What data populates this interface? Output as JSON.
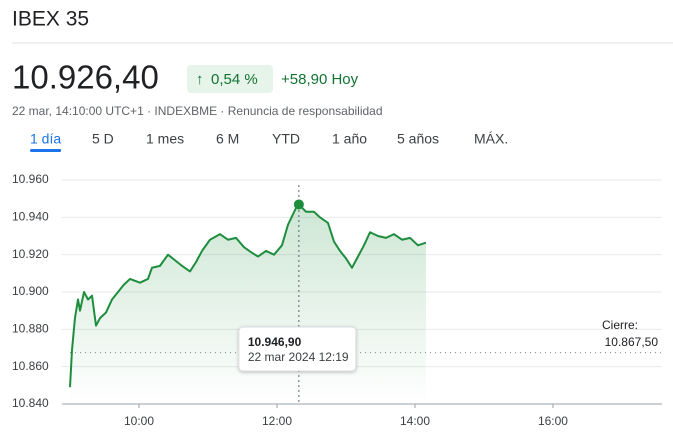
{
  "header": {
    "title": "IBEX 35",
    "price": "10.926,40",
    "change_arrow": "↑",
    "change_percent": "0,54 %",
    "change_abs": "+58,90 Hoy",
    "meta": "22 mar, 14:10:00 UTC+1 · INDEXBME · Renuncia de responsabilidad"
  },
  "tabs": [
    "1 día",
    "5 D",
    "1 mes",
    "6 M",
    "YTD",
    "1 año",
    "5 años",
    "MÁX."
  ],
  "chart_data": {
    "type": "line",
    "series": [
      {
        "name": "IBEX 35",
        "color": "#1e8e3e",
        "x": [
          9.0,
          9.029,
          9.072,
          9.116,
          9.145,
          9.203,
          9.261,
          9.319,
          9.377,
          9.435,
          9.522,
          9.609,
          9.696,
          9.783,
          9.87,
          10.014,
          10.13,
          10.188,
          10.304,
          10.42,
          10.522,
          10.623,
          10.739,
          10.826,
          10.913,
          11.029,
          11.174,
          11.29,
          11.406,
          11.522,
          11.638,
          11.725,
          11.841,
          11.957,
          12.072,
          12.159,
          12.275,
          12.317,
          12.42,
          12.536,
          12.623,
          12.739,
          12.826,
          12.913,
          13.0,
          13.087,
          13.174,
          13.261,
          13.348,
          13.464,
          13.58,
          13.696,
          13.812,
          13.928,
          14.043,
          14.159
        ],
        "values": [
          10849,
          10869,
          10886,
          10896,
          10890,
          10900,
          10896,
          10898,
          10882,
          10886,
          10889,
          10896,
          10900,
          10904,
          10907,
          10905,
          10907,
          10913,
          10914,
          10920,
          10917,
          10914,
          10911,
          10916,
          10922,
          10928,
          10931,
          10928,
          10929,
          10924,
          10921,
          10919,
          10922,
          10920,
          10925,
          10936,
          10945,
          10946.9,
          10943,
          10943,
          10940,
          10937,
          10927,
          10922,
          10918,
          10913,
          10919,
          10925,
          10932,
          10930,
          10929,
          10931,
          10928,
          10929,
          10925,
          10926.4
        ]
      }
    ],
    "xlim": [
      9,
      17.58
    ],
    "xticks": [
      {
        "value": 10,
        "label": "10:00"
      },
      {
        "value": 12,
        "label": "12:00"
      },
      {
        "value": 14,
        "label": "14:00"
      },
      {
        "value": 16,
        "label": "16:00"
      }
    ],
    "ylim": [
      10840,
      10960
    ],
    "yticks": [
      {
        "value": 10840,
        "label": "10.840"
      },
      {
        "value": 10860,
        "label": "10.860"
      },
      {
        "value": 10880,
        "label": "10.880"
      },
      {
        "value": 10900,
        "label": "10.900"
      },
      {
        "value": 10920,
        "label": "10.920"
      },
      {
        "value": 10940,
        "label": "10.940"
      },
      {
        "value": 10960,
        "label": "10.960"
      }
    ],
    "grid": true,
    "previous_close": {
      "label": "Cierre:",
      "value": 10867.5,
      "value_label": "10.867,50"
    },
    "tooltip": {
      "value": 10946.9,
      "value_label": "10.946,90",
      "time": "22 mar 2024 12:19"
    }
  }
}
